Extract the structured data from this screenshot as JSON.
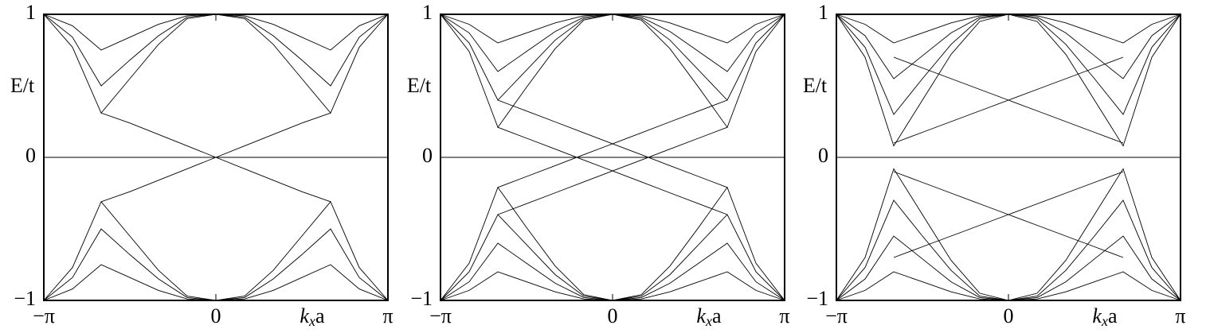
{
  "chart_data": [
    {
      "type": "line",
      "y_label": "E/t",
      "x_label": [
        "k",
        "x",
        "a"
      ],
      "zero_line": true,
      "xlim": [
        -3.1416,
        3.1416
      ],
      "ylim": [
        -1,
        1
      ],
      "xticks": [
        {
          "value": -3.1416,
          "label": "−π"
        },
        0,
        {
          "value": 3.1416,
          "label": "π"
        }
      ],
      "yticks": [
        {
          "value": -1,
          "label": "−1"
        },
        0,
        1
      ],
      "x": [
        -3.1416,
        -2.618,
        -2.0944,
        -1.5708,
        -1.0472,
        -0.5236,
        0,
        0.5236,
        1.0472,
        1.5708,
        2.0944,
        2.618,
        3.1416
      ],
      "series": [
        {
          "color": "#000000",
          "values": [
            1,
            0.77,
            0.31,
            0.55,
            0.79,
            0.97,
            1,
            0.97,
            0.79,
            0.55,
            0.31,
            0.77,
            1
          ]
        },
        {
          "color": "#000000",
          "values": [
            1,
            0.84,
            0.5,
            0.68,
            0.85,
            0.98,
            1,
            0.98,
            0.85,
            0.68,
            0.5,
            0.84,
            1
          ]
        },
        {
          "color": "#000000",
          "values": [
            1,
            0.92,
            0.75,
            0.84,
            0.93,
            0.99,
            1,
            0.99,
            0.93,
            0.84,
            0.75,
            0.92,
            1
          ]
        },
        {
          "color": "#000000",
          "values": [
            -1,
            -0.77,
            -0.31,
            -0.55,
            -0.79,
            -0.97,
            -1,
            -0.97,
            -0.79,
            -0.55,
            -0.31,
            -0.77,
            -1
          ]
        },
        {
          "color": "#000000",
          "values": [
            -1,
            -0.84,
            -0.5,
            -0.68,
            -0.85,
            -0.98,
            -1,
            -0.98,
            -0.85,
            -0.68,
            -0.5,
            -0.84,
            -1
          ]
        },
        {
          "color": "#000000",
          "values": [
            -1,
            -0.92,
            -0.75,
            -0.84,
            -0.93,
            -0.99,
            -1,
            -0.99,
            -0.93,
            -0.84,
            -0.75,
            -0.92,
            -1
          ]
        },
        {
          "color": "#000000",
          "values": [
            null,
            null,
            0.31,
            0.24,
            0.16,
            0.08,
            0,
            -0.08,
            -0.16,
            -0.24,
            -0.31,
            null,
            null
          ]
        },
        {
          "color": "#000000",
          "values": [
            null,
            null,
            -0.31,
            -0.24,
            -0.16,
            -0.08,
            0,
            0.08,
            0.16,
            0.24,
            0.31,
            null,
            null
          ]
        }
      ]
    },
    {
      "type": "line",
      "y_label": "E/t",
      "x_label": [
        "k",
        "x",
        "a"
      ],
      "zero_line": true,
      "xlim": [
        -3.1416,
        3.1416
      ],
      "ylim": [
        -1,
        1
      ],
      "xticks": [
        {
          "value": -3.1416,
          "label": "−π"
        },
        0,
        {
          "value": 3.1416,
          "label": "π"
        }
      ],
      "yticks": [
        {
          "value": -1,
          "label": "−1"
        },
        0,
        1
      ],
      "x": [
        -3.1416,
        -2.618,
        -2.0944,
        -1.5708,
        -1.0472,
        -0.5236,
        0,
        0.5236,
        1.0472,
        1.5708,
        2.0944,
        2.618,
        3.1416
      ],
      "series": [
        {
          "color": "#000000",
          "values": [
            1,
            0.74,
            0.21,
            0.49,
            0.76,
            0.96,
            1,
            0.96,
            0.76,
            0.49,
            0.21,
            0.74,
            1
          ]
        },
        {
          "color": "#000000",
          "values": [
            1,
            0.8,
            0.4,
            0.61,
            0.82,
            0.97,
            1,
            0.97,
            0.82,
            0.61,
            0.4,
            0.8,
            1
          ]
        },
        {
          "color": "#000000",
          "values": [
            1,
            0.87,
            0.6,
            0.74,
            0.88,
            0.98,
            1,
            0.98,
            0.88,
            0.74,
            0.6,
            0.87,
            1
          ]
        },
        {
          "color": "#000000",
          "values": [
            1,
            0.93,
            0.8,
            0.87,
            0.94,
            0.99,
            1,
            0.99,
            0.94,
            0.87,
            0.8,
            0.93,
            1
          ]
        },
        {
          "color": "#000000",
          "values": [
            -1,
            -0.74,
            -0.21,
            -0.49,
            -0.76,
            -0.96,
            -1,
            -0.96,
            -0.76,
            -0.49,
            -0.21,
            -0.74,
            -1
          ]
        },
        {
          "color": "#000000",
          "values": [
            -1,
            -0.8,
            -0.4,
            -0.61,
            -0.82,
            -0.97,
            -1,
            -0.97,
            -0.82,
            -0.61,
            -0.4,
            -0.8,
            -1
          ]
        },
        {
          "color": "#000000",
          "values": [
            -1,
            -0.87,
            -0.6,
            -0.74,
            -0.88,
            -0.98,
            -1,
            -0.98,
            -0.88,
            -0.74,
            -0.6,
            -0.87,
            -1
          ]
        },
        {
          "color": "#000000",
          "values": [
            -1,
            -0.93,
            -0.8,
            -0.87,
            -0.94,
            -0.99,
            -1,
            -0.99,
            -0.94,
            -0.87,
            -0.8,
            -0.93,
            -1
          ]
        },
        {
          "color": "#000000",
          "values": [
            null,
            null,
            0.21,
            0.134,
            0.058,
            -0.019,
            -0.095,
            -0.171,
            -0.248,
            -0.324,
            -0.4,
            null,
            null
          ]
        },
        {
          "color": "#000000",
          "values": [
            null,
            null,
            0.4,
            0.324,
            0.248,
            0.171,
            0.095,
            0.019,
            -0.058,
            -0.134,
            -0.21,
            null,
            null
          ]
        },
        {
          "color": "#000000",
          "values": [
            null,
            null,
            -0.21,
            -0.134,
            -0.058,
            0.019,
            0.095,
            0.171,
            0.248,
            0.324,
            0.4,
            null,
            null
          ]
        },
        {
          "color": "#000000",
          "values": [
            null,
            null,
            -0.4,
            -0.324,
            -0.248,
            -0.171,
            -0.095,
            -0.019,
            0.058,
            0.134,
            0.21,
            null,
            null
          ]
        }
      ]
    },
    {
      "type": "line",
      "y_label": "E/t",
      "x_label": [
        "k",
        "x",
        "a"
      ],
      "zero_line": true,
      "xlim": [
        -3.1416,
        3.1416
      ],
      "ylim": [
        -1,
        1
      ],
      "xticks": [
        {
          "value": -3.1416,
          "label": "−π"
        },
        0,
        {
          "value": 3.1416,
          "label": "π"
        }
      ],
      "yticks": [
        {
          "value": -1,
          "label": "−1"
        },
        0,
        1
      ],
      "x": [
        -3.1416,
        -2.618,
        -2.0944,
        -1.5708,
        -1.0472,
        -0.5236,
        0,
        0.5236,
        1.0472,
        1.5708,
        2.0944,
        2.618,
        3.1416
      ],
      "series": [
        {
          "color": "#000000",
          "values": [
            1,
            0.7,
            0.08,
            0.4,
            0.72,
            0.95,
            1,
            0.95,
            0.72,
            0.4,
            0.08,
            0.7,
            1
          ]
        },
        {
          "color": "#000000",
          "values": [
            1,
            0.77,
            0.3,
            0.55,
            0.79,
            0.97,
            1,
            0.97,
            0.79,
            0.55,
            0.3,
            0.77,
            1
          ]
        },
        {
          "color": "#000000",
          "values": [
            1,
            0.85,
            0.55,
            0.71,
            0.87,
            0.98,
            1,
            0.98,
            0.87,
            0.71,
            0.55,
            0.85,
            1
          ]
        },
        {
          "color": "#000000",
          "values": [
            1,
            0.93,
            0.8,
            0.87,
            0.94,
            0.99,
            1,
            0.99,
            0.94,
            0.87,
            0.8,
            0.93,
            1
          ]
        },
        {
          "color": "#000000",
          "values": [
            -1,
            -0.7,
            -0.08,
            -0.4,
            -0.72,
            -0.95,
            -1,
            -0.95,
            -0.72,
            -0.4,
            -0.08,
            -0.7,
            -1
          ]
        },
        {
          "color": "#000000",
          "values": [
            -1,
            -0.77,
            -0.3,
            -0.55,
            -0.79,
            -0.97,
            -1,
            -0.97,
            -0.79,
            -0.55,
            -0.3,
            -0.77,
            -1
          ]
        },
        {
          "color": "#000000",
          "values": [
            -1,
            -0.85,
            -0.55,
            -0.71,
            -0.87,
            -0.98,
            -1,
            -0.98,
            -0.87,
            -0.71,
            -0.55,
            -0.85,
            -1
          ]
        },
        {
          "color": "#000000",
          "values": [
            -1,
            -0.93,
            -0.8,
            -0.87,
            -0.94,
            -0.99,
            -1,
            -0.99,
            -0.94,
            -0.87,
            -0.8,
            -0.93,
            -1
          ]
        },
        {
          "color": "#000000",
          "values": [
            null,
            null,
            0.1,
            0.175,
            0.25,
            0.325,
            0.4,
            0.475,
            0.55,
            0.625,
            0.7,
            null,
            null
          ]
        },
        {
          "color": "#000000",
          "values": [
            null,
            null,
            0.7,
            0.625,
            0.55,
            0.475,
            0.4,
            0.325,
            0.25,
            0.175,
            0.1,
            null,
            null
          ]
        },
        {
          "color": "#000000",
          "values": [
            null,
            null,
            -0.1,
            -0.175,
            -0.25,
            -0.325,
            -0.4,
            -0.475,
            -0.55,
            -0.625,
            -0.7,
            null,
            null
          ]
        },
        {
          "color": "#000000",
          "values": [
            null,
            null,
            -0.7,
            -0.625,
            -0.55,
            -0.475,
            -0.4,
            -0.325,
            -0.25,
            -0.175,
            -0.1,
            null,
            null
          ]
        }
      ]
    }
  ]
}
